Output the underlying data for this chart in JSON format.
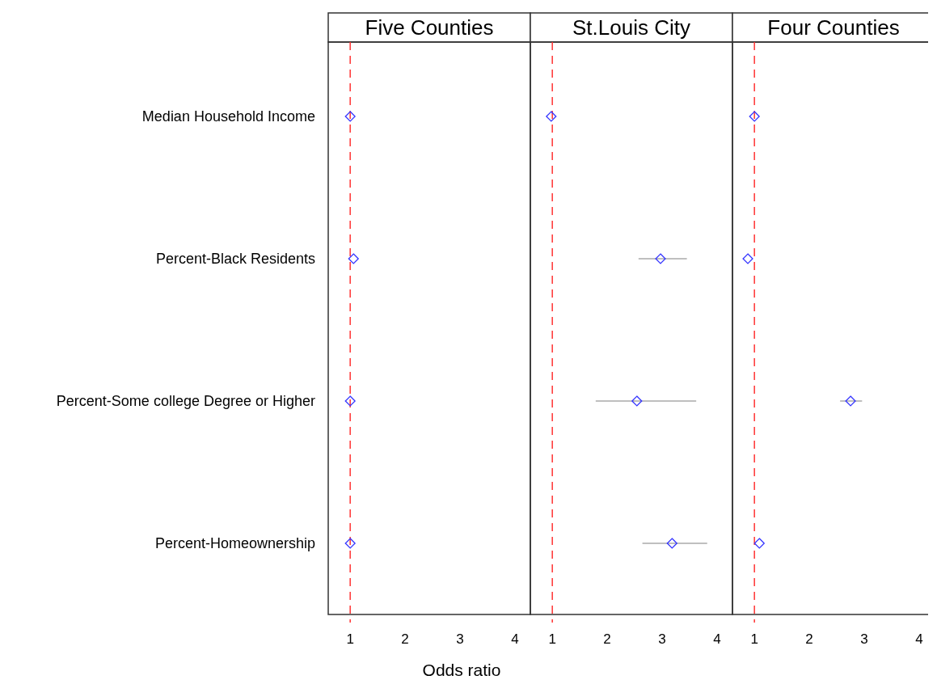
{
  "chart_data": [
    {
      "type": "scatter",
      "title": "Five Counties",
      "orientation": "horizontal",
      "categories": [
        "Median Household Income",
        "Percent-Black Residents",
        "Percent-Some college Degree or Higher",
        "Percent-Homeownership"
      ],
      "series": [
        {
          "color": "#3333ff",
          "values": [
            1.0,
            1.06,
            1.0,
            1.0
          ],
          "errors": [
            null,
            null,
            null,
            null
          ]
        }
      ],
      "xlim": [
        0.6,
        4.28
      ],
      "xticks": [
        1,
        2,
        3,
        4
      ],
      "xlabel": "Odds ratio",
      "marker": "diamond",
      "ref_lines": [
        {
          "axis": "x",
          "value": 1,
          "color": "#ff3333",
          "line_style": "dashed"
        }
      ],
      "grid": false
    },
    {
      "type": "scatter",
      "title": "St.Louis City",
      "orientation": "horizontal",
      "series": [
        {
          "color": "#3333ff",
          "values": [
            0.98,
            2.97,
            2.54,
            3.18
          ],
          "errors": [
            null,
            [
              2.57,
              3.45
            ],
            [
              1.79,
              3.62
            ],
            [
              2.64,
              3.82
            ]
          ]
        }
      ],
      "xlim": [
        0.6,
        4.28
      ],
      "xticks": [
        1,
        2,
        3,
        4
      ],
      "marker": "diamond",
      "ref_lines": [
        {
          "axis": "x",
          "value": 1,
          "color": "#ff3333",
          "line_style": "dashed"
        }
      ],
      "grid": false,
      "tick_labels": "x"
    },
    {
      "type": "scatter",
      "title": "Four Counties",
      "orientation": "horizontal",
      "series": [
        {
          "color": "#3333ff",
          "values": [
            1.0,
            0.88,
            2.75,
            1.09
          ],
          "errors": [
            null,
            null,
            [
              2.56,
              2.96
            ],
            null
          ]
        }
      ],
      "xlim": [
        0.6,
        4.28
      ],
      "xticks": [
        1,
        2,
        3,
        4
      ],
      "marker": "diamond",
      "ref_lines": [
        {
          "axis": "x",
          "value": 1,
          "color": "#ff3333",
          "line_style": "dashed"
        }
      ],
      "grid": false,
      "tick_labels": "x"
    }
  ]
}
